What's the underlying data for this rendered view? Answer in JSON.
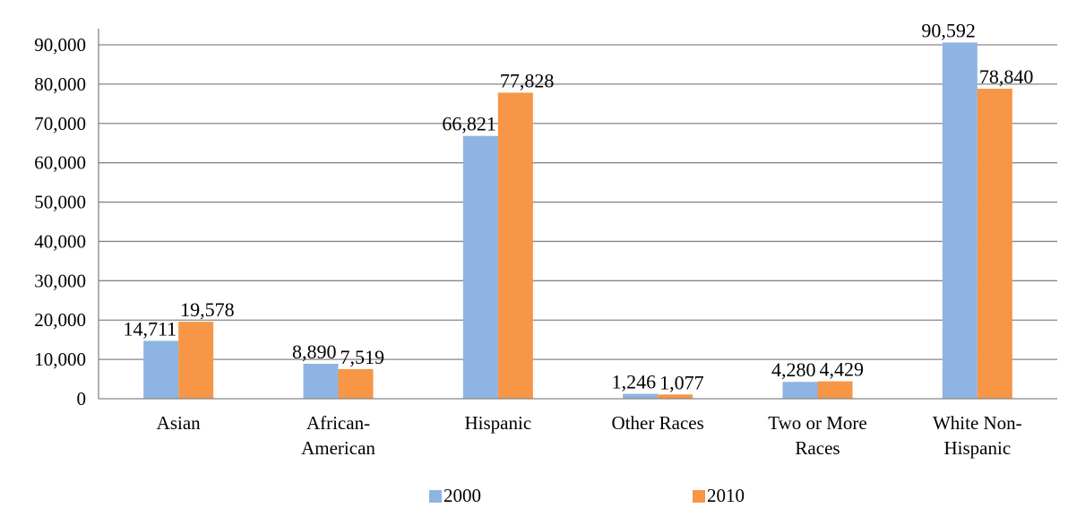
{
  "chart_data": {
    "type": "bar",
    "categories": [
      [
        "Asian"
      ],
      [
        "African-",
        "American"
      ],
      [
        "Hispanic"
      ],
      [
        "Other Races"
      ],
      [
        "Two or More",
        "Races"
      ],
      [
        "White Non-",
        "Hispanic"
      ]
    ],
    "series": [
      {
        "name": "2000",
        "color": "#8EB4E3",
        "values": [
          14711,
          8890,
          66821,
          1246,
          4280,
          90592
        ],
        "labels": [
          "14,711",
          "8,890",
          "66,821",
          "1,246",
          "4,280",
          "90,592"
        ]
      },
      {
        "name": "2010",
        "color": "#F79646",
        "values": [
          19578,
          7519,
          77828,
          1077,
          4429,
          78840
        ],
        "labels": [
          "19,578",
          "7,519",
          "77,828",
          "1,077",
          "4,429",
          "78,840"
        ]
      }
    ],
    "ylim": [
      0,
      90000
    ],
    "yticks": [
      0,
      10000,
      20000,
      30000,
      40000,
      50000,
      60000,
      70000,
      80000,
      90000
    ],
    "ytick_labels": [
      "0",
      "10,000",
      "20,000",
      "30,000",
      "40,000",
      "50,000",
      "60,000",
      "70,000",
      "80,000",
      "90,000"
    ],
    "grid": true,
    "gridline_color": "#868686",
    "legend_position": "bottom"
  }
}
